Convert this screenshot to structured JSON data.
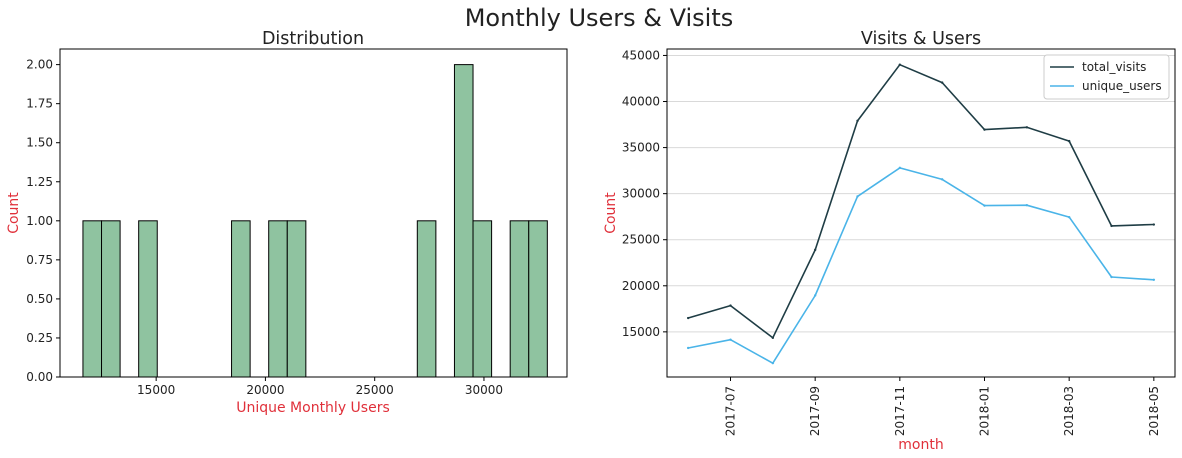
{
  "suptitle": "Monthly Users & Visits",
  "chart_data": [
    {
      "type": "bar",
      "subtype": "histogram",
      "title": "Distribution",
      "xlabel": "Unique Monthly Users",
      "ylabel": "Count",
      "xlim": [
        10600,
        33800
      ],
      "ylim": [
        0,
        2.1
      ],
      "xticks": [
        15000,
        20000,
        25000,
        30000
      ],
      "xtick_labels": [
        "15000",
        "20000",
        "25000",
        "30000"
      ],
      "yticks": [
        0,
        0.25,
        0.5,
        0.75,
        1.0,
        1.25,
        1.5,
        1.75,
        2.0
      ],
      "ytick_labels": [
        "0.00",
        "0.25",
        "0.50",
        "0.75",
        "1.00",
        "1.25",
        "1.50",
        "1.75",
        "2.00"
      ],
      "bins": [
        {
          "x0": 11650,
          "x1": 12500,
          "count": 1
        },
        {
          "x0": 12500,
          "x1": 13350,
          "count": 1
        },
        {
          "x0": 13350,
          "x1": 14200,
          "count": 0
        },
        {
          "x0": 14200,
          "x1": 15050,
          "count": 1
        },
        {
          "x0": 15050,
          "x1": 15900,
          "count": 0
        },
        {
          "x0": 15900,
          "x1": 16750,
          "count": 0
        },
        {
          "x0": 16750,
          "x1": 17600,
          "count": 0
        },
        {
          "x0": 17600,
          "x1": 18450,
          "count": 0
        },
        {
          "x0": 18450,
          "x1": 19300,
          "count": 1
        },
        {
          "x0": 19300,
          "x1": 20150,
          "count": 0
        },
        {
          "x0": 20150,
          "x1": 21000,
          "count": 1
        },
        {
          "x0": 21000,
          "x1": 21850,
          "count": 1
        },
        {
          "x0": 21850,
          "x1": 22700,
          "count": 0
        },
        {
          "x0": 22700,
          "x1": 23550,
          "count": 0
        },
        {
          "x0": 23550,
          "x1": 24400,
          "count": 0
        },
        {
          "x0": 24400,
          "x1": 25250,
          "count": 0
        },
        {
          "x0": 25250,
          "x1": 26100,
          "count": 0
        },
        {
          "x0": 26100,
          "x1": 26950,
          "count": 0
        },
        {
          "x0": 26950,
          "x1": 27800,
          "count": 1
        },
        {
          "x0": 27800,
          "x1": 28650,
          "count": 0
        },
        {
          "x0": 28650,
          "x1": 29500,
          "count": 2
        },
        {
          "x0": 29500,
          "x1": 30350,
          "count": 1
        },
        {
          "x0": 30350,
          "x1": 31200,
          "count": 0
        },
        {
          "x0": 31200,
          "x1": 32050,
          "count": 1
        },
        {
          "x0": 32050,
          "x1": 32900,
          "count": 1
        }
      ],
      "bar_color": "#8fc3a0",
      "edge_color": "#000000",
      "label_color": "#e0303a",
      "grid": false
    },
    {
      "type": "line",
      "title": "Visits & Users",
      "xlabel": "month",
      "ylabel": "Count",
      "x": [
        "2017-06",
        "2017-07",
        "2017-08",
        "2017-09",
        "2017-10",
        "2017-11",
        "2017-12",
        "2018-01",
        "2018-02",
        "2018-03",
        "2018-04",
        "2018-05"
      ],
      "xticks": [
        "2017-07",
        "2017-09",
        "2017-11",
        "2018-01",
        "2018-03",
        "2018-05"
      ],
      "ylim": [
        10100,
        45700
      ],
      "yticks": [
        15000,
        20000,
        25000,
        30000,
        35000,
        40000,
        45000
      ],
      "ytick_labels": [
        "15000",
        "20000",
        "25000",
        "30000",
        "35000",
        "40000",
        "45000"
      ],
      "series": [
        {
          "name": "total_visits",
          "color": "#1f3d45",
          "values": [
            16500,
            17850,
            14350,
            23900,
            37900,
            44000,
            42050,
            36950,
            37200,
            35700,
            26500,
            26650
          ]
        },
        {
          "name": "unique_users",
          "color": "#4ab4e8",
          "values": [
            13250,
            14150,
            11600,
            18950,
            29700,
            32800,
            31550,
            28700,
            28750,
            27450,
            20950,
            20650
          ]
        }
      ],
      "label_color": "#e0303a",
      "grid": "horizontal",
      "legend": "top-right"
    }
  ]
}
